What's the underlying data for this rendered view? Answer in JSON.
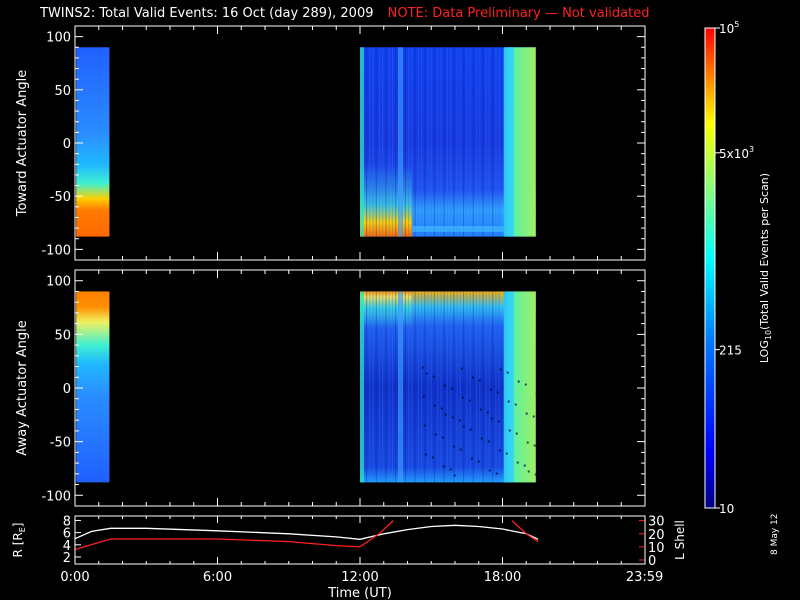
{
  "title": "TWINS2: Total Valid Events: 16 Oct (day 289), 2009",
  "note": "NOTE: Data Preliminary — Not validated",
  "date_stamp": "8 May 12",
  "colors": {
    "background": "#000000",
    "note": "#ff2020",
    "r_line": "#ffffff",
    "lshell_line": "#ff2020"
  },
  "chart_data": [
    {
      "type": "heatmap",
      "panel": "toward",
      "ylabel": "Toward Actuator Angle",
      "ylim": [
        -110,
        110
      ],
      "yticks": [
        100,
        50,
        0,
        -50,
        -100
      ],
      "xlim": [
        0,
        24
      ],
      "xticks": [
        "",
        "",
        "",
        "",
        ""
      ],
      "data_blocks": [
        {
          "t_start": 0.05,
          "t_end": 1.45,
          "kind": "early",
          "invert": false
        },
        {
          "t_start": 12.0,
          "t_end": 19.4,
          "kind": "main",
          "invert": false
        }
      ],
      "angle_range": [
        -88,
        90
      ]
    },
    {
      "type": "heatmap",
      "panel": "away",
      "ylabel": "Away Actuator Angle",
      "ylim": [
        -110,
        110
      ],
      "yticks": [
        100,
        50,
        0,
        -50,
        -100
      ],
      "xlim": [
        0,
        24
      ],
      "xticks": [
        "",
        "",
        "",
        "",
        ""
      ],
      "data_blocks": [
        {
          "t_start": 0.05,
          "t_end": 1.45,
          "kind": "early",
          "invert": true
        },
        {
          "t_start": 12.0,
          "t_end": 19.4,
          "kind": "main",
          "invert": true
        }
      ],
      "angle_range": [
        -88,
        90
      ]
    },
    {
      "type": "line",
      "panel": "orbit",
      "ylabel_left": "R [R",
      "ylabel_left_sub": "E",
      "ylabel_left_end": "]",
      "ylabel_right": "L Shell",
      "xlabel": "Time (UT)",
      "xlim": [
        0,
        24
      ],
      "xticks": [
        "0:00",
        "6:00",
        "12:00",
        "18:00",
        "23:59"
      ],
      "yticks_left": [
        8,
        6,
        4,
        2
      ],
      "yticks_right": [
        30,
        20,
        10,
        0
      ],
      "series": [
        {
          "name": "",
          "axis": "left",
          "x": [
            0,
            0.7,
            1.5,
            3,
            6,
            9,
            11,
            12,
            13,
            14,
            15,
            16,
            17,
            18,
            19,
            19.5
          ],
          "y": [
            5.0,
            6.2,
            6.7,
            6.7,
            6.3,
            5.8,
            5.3,
            4.9,
            5.8,
            6.5,
            7.0,
            7.2,
            7.0,
            6.6,
            5.8,
            4.9
          ]
        },
        {
          "name": "",
          "axis": "right",
          "x": [
            0,
            1.5,
            6,
            9,
            11,
            12
          ],
          "y": [
            8,
            16,
            16,
            14,
            11,
            10
          ]
        },
        {
          "name": "",
          "axis": "right",
          "x": [
            12,
            12.8,
            13.4
          ],
          "y": [
            10,
            20,
            30
          ]
        },
        {
          "name": "",
          "axis": "right",
          "x": [
            18.4,
            19.0,
            19.5
          ],
          "y": [
            30,
            20,
            14
          ]
        }
      ]
    }
  ],
  "colorbar": {
    "label": "LOG",
    "label_sub": "10",
    "label_end": "(Total Valid Events per Scan)",
    "ticks": [
      {
        "label": "10",
        "sup": "5",
        "frac": 1.0
      },
      {
        "label": "5x10",
        "sup": "3",
        "frac": 0.74
      },
      {
        "label": "215",
        "sup": "",
        "frac": 0.33
      },
      {
        "label": "10",
        "sup": "",
        "frac": 0.0
      }
    ]
  }
}
